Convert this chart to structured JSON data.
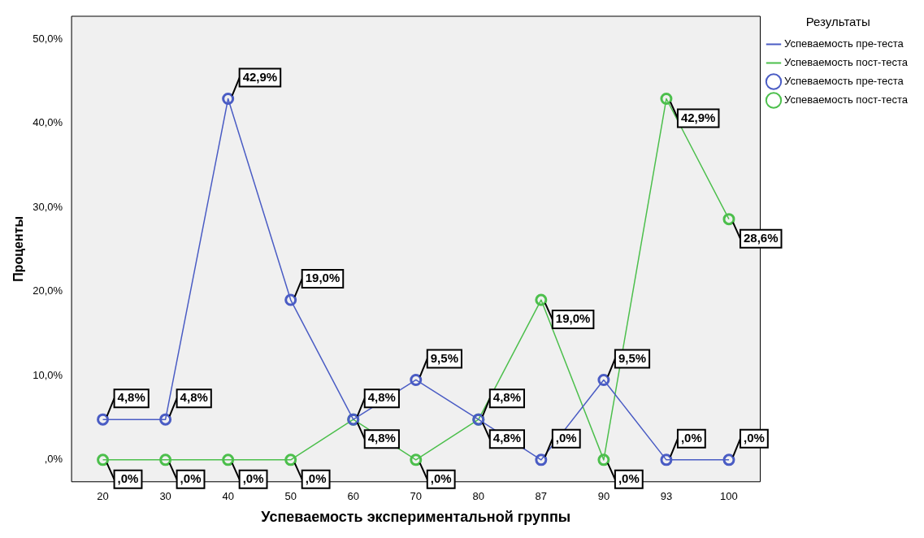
{
  "chart_data": {
    "type": "line",
    "xlabel": "Успеваемость экспериментальной группы",
    "ylabel": "Проценты",
    "legend_title": "Результаты",
    "categories": [
      "20",
      "30",
      "40",
      "50",
      "60",
      "70",
      "80",
      "87",
      "90",
      "93",
      "100"
    ],
    "series": [
      {
        "name": "Успеваемость пре-теста",
        "color": "#4a5cc4",
        "values": [
          4.8,
          4.8,
          42.9,
          19.0,
          4.8,
          9.5,
          4.8,
          0,
          9.5,
          0,
          0
        ],
        "value_labels": [
          "4,8%",
          "4,8%",
          "42,9%",
          "19,0%",
          "4,8%",
          "9,5%",
          "4,8%",
          ",0%",
          "9,5%",
          ",0%",
          ",0%"
        ]
      },
      {
        "name": "Успеваемость пост-теста",
        "color": "#4cbf4c",
        "values": [
          0,
          0,
          0,
          0,
          4.8,
          0,
          4.8,
          19.0,
          0,
          42.9,
          28.6
        ],
        "value_labels": [
          ",0%",
          ",0%",
          ",0%",
          ",0%",
          "4,8%",
          ",0%",
          "4,8%",
          "19,0%",
          ",0%",
          "42,9%",
          "28,6%"
        ]
      }
    ],
    "ylim": [
      -2.6,
      52.7
    ],
    "yticks": [
      {
        "value": 0,
        "label": ",0%"
      },
      {
        "value": 10,
        "label": "10,0%"
      },
      {
        "value": 20,
        "label": "20,0%"
      },
      {
        "value": 30,
        "label": "30,0%"
      },
      {
        "value": 40,
        "label": "40,0%"
      },
      {
        "value": 50,
        "label": "50,0%"
      }
    ],
    "grid": false,
    "legend": "top right",
    "marker": "circle",
    "line_style": "solid"
  }
}
